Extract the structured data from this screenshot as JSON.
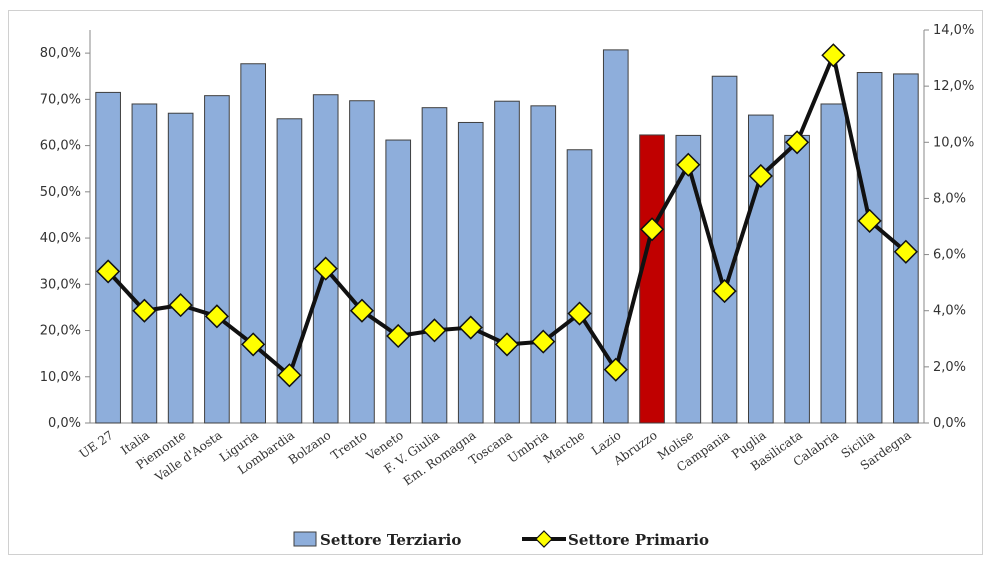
{
  "chart_data": {
    "type": "bar",
    "categories": [
      "UE 27",
      "Italia",
      "Piemonte",
      "Valle d'Aosta",
      "Liguria",
      "Lombardia",
      "Bolzano",
      "Trento",
      "Veneto",
      "F. V. Giulia",
      "Em. Romagna",
      "Toscana",
      "Umbria",
      "Marche",
      "Lazio",
      "Abruzzo",
      "Molise",
      "Campania",
      "Puglia",
      "Basilicata",
      "Calabria",
      "Sicilia",
      "Sardegna"
    ],
    "series": [
      {
        "name": "Settore Terziario",
        "kind": "bar",
        "axis": "left",
        "color": "#8eaedb",
        "highlight_color": "#c00000",
        "highlight_category": "Abruzzo",
        "values": [
          71.5,
          69.0,
          67.0,
          70.8,
          77.7,
          65.8,
          71.0,
          69.7,
          61.2,
          68.2,
          65.0,
          69.6,
          68.6,
          59.1,
          80.7,
          62.3,
          62.2,
          75.0,
          66.6,
          62.2,
          69.0,
          75.8,
          75.5
        ]
      },
      {
        "name": "Settore Primario",
        "kind": "line",
        "axis": "right",
        "color": "#111111",
        "marker_color": "#ffff00",
        "values": [
          5.4,
          4.0,
          4.2,
          3.8,
          2.8,
          1.7,
          5.5,
          4.0,
          3.1,
          3.3,
          3.4,
          2.8,
          2.9,
          3.9,
          1.9,
          6.9,
          9.2,
          4.7,
          8.8,
          10.0,
          13.1,
          7.2,
          6.1
        ]
      }
    ],
    "y_left": {
      "ticks": [
        "0,0%",
        "10,0%",
        "20,0%",
        "30,0%",
        "40,0%",
        "50,0%",
        "60,0%",
        "70,0%",
        "80,0%"
      ],
      "ylim": [
        0,
        85
      ]
    },
    "y_right": {
      "ticks": [
        "0,0%",
        "2,0%",
        "4,0%",
        "6,0%",
        "8,0%",
        "10,0%",
        "12,0%",
        "14,0%"
      ],
      "ylim": [
        0,
        14
      ]
    },
    "grid": false,
    "legend": {
      "position": "bottom-center"
    }
  }
}
